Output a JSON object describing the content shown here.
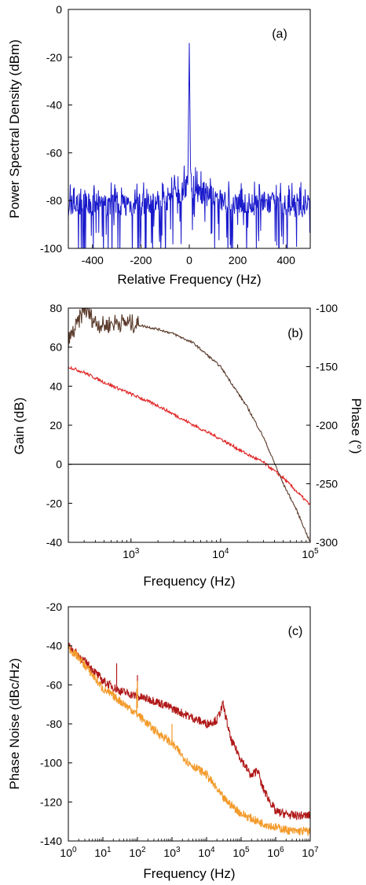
{
  "chart_data": [
    {
      "type": "line",
      "panel_label": "(a)",
      "xlabel": "Relative Frequency (Hz)",
      "ylabel": "Power Spectral Density (dBm)",
      "xlim": [
        -500,
        500
      ],
      "ylim": [
        -100,
        0
      ],
      "x_ticks": [
        -400,
        -200,
        0,
        200,
        400
      ],
      "y_ticks": [
        0,
        -20,
        -40,
        -60,
        -80,
        -100
      ],
      "grid": false,
      "series": [
        {
          "color": "#1a1acc",
          "x": [
            -500,
            -400,
            -300,
            -200,
            -100,
            -20,
            -10,
            -5,
            0,
            5,
            10,
            20,
            100,
            200,
            300,
            400,
            500
          ],
          "y": [
            -82,
            -82,
            -81,
            -82,
            -80,
            -75,
            -73,
            -68,
            -14,
            -68,
            -73,
            -75,
            -79,
            -82,
            -81,
            -82,
            -82
          ]
        }
      ]
    },
    {
      "type": "line",
      "panel_label": "(b)",
      "xlabel": "Frequency (Hz)",
      "ylabel": "Gain (dB)",
      "y2label": "Phase (°)",
      "xscale": "log",
      "xlim": [
        200,
        100000
      ],
      "ylim": [
        -40,
        80
      ],
      "y2lim": [
        -300,
        -100
      ],
      "x_ticks": [
        {
          "base": "10",
          "exp": "3"
        },
        {
          "base": "10",
          "exp": "4"
        },
        {
          "base": "10",
          "exp": "5"
        }
      ],
      "y_ticks": [
        80,
        60,
        40,
        20,
        0,
        -20,
        -40
      ],
      "y2_ticks": [
        -100,
        -150,
        -200,
        -250,
        -300
      ],
      "grid": false,
      "series": [
        {
          "axis": "left",
          "color": "#e02020",
          "x": [
            200,
            300,
            500,
            1000,
            2000,
            5000,
            10000,
            20000,
            30000,
            50000,
            100000
          ],
          "y": [
            50,
            47,
            42,
            36,
            30,
            20,
            13,
            5,
            1,
            -7,
            -21
          ]
        },
        {
          "axis": "right",
          "color": "#5a3a2a",
          "x": [
            200,
            250,
            300,
            400,
            500,
            700,
            1000,
            2000,
            3000,
            5000,
            10000,
            20000,
            30000,
            50000,
            70000,
            100000
          ],
          "y2": [
            -128,
            -115,
            -100,
            -112,
            -115,
            -112,
            -113,
            -118,
            -122,
            -130,
            -150,
            -185,
            -210,
            -250,
            -272,
            -300
          ]
        },
        {
          "axis": "left",
          "color": "#000000",
          "x": [
            200,
            100000
          ],
          "y": [
            0,
            0
          ]
        }
      ]
    },
    {
      "type": "line",
      "panel_label": "(c)",
      "xlabel": "Frequency (Hz)",
      "ylabel": "Phase Noise (dBc/Hz)",
      "xscale": "log",
      "xlim": [
        1,
        10000000
      ],
      "ylim": [
        -140,
        -20
      ],
      "x_ticks": [
        {
          "base": "10",
          "exp": "0"
        },
        {
          "base": "10",
          "exp": "1"
        },
        {
          "base": "10",
          "exp": "2"
        },
        {
          "base": "10",
          "exp": "3"
        },
        {
          "base": "10",
          "exp": "4"
        },
        {
          "base": "10",
          "exp": "5"
        },
        {
          "base": "10",
          "exp": "6"
        },
        {
          "base": "10",
          "exp": "7"
        }
      ],
      "y_ticks": [
        -20,
        -40,
        -60,
        -80,
        -100,
        -120,
        -140
      ],
      "grid": false,
      "series": [
        {
          "color": "#b01818",
          "x": [
            1,
            2,
            5,
            10,
            30,
            100,
            300,
            1000,
            3000,
            10000,
            20000,
            30000,
            50000,
            100000,
            200000,
            300000,
            400000,
            1000000,
            3000000,
            10000000
          ],
          "y": [
            -40,
            -45,
            -52,
            -58,
            -63,
            -66,
            -68,
            -72,
            -76,
            -80,
            -78,
            -70,
            -88,
            -98,
            -107,
            -103,
            -112,
            -125,
            -127,
            -127
          ]
        },
        {
          "color": "#f39a2a",
          "x": [
            1,
            2,
            5,
            10,
            30,
            100,
            300,
            1000,
            3000,
            10000,
            30000,
            100000,
            300000,
            1000000,
            3000000,
            10000000
          ],
          "y": [
            -41,
            -46,
            -55,
            -62,
            -68,
            -75,
            -83,
            -90,
            -100,
            -106,
            -118,
            -126,
            -130,
            -133,
            -135,
            -135
          ]
        }
      ]
    }
  ]
}
